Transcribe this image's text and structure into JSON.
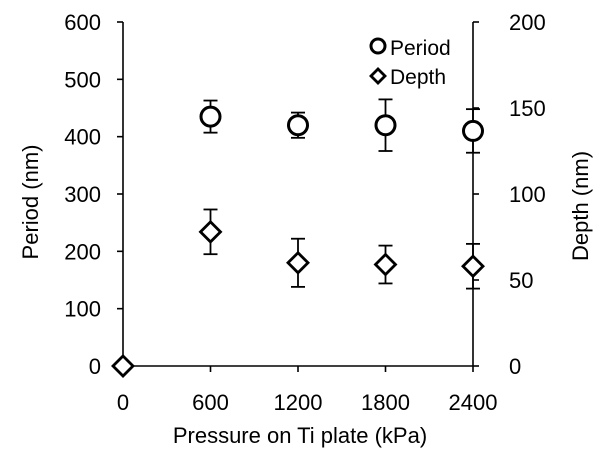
{
  "chart_data": {
    "type": "scatter",
    "title": "",
    "xlabel": "Pressure on Ti plate (kPa)",
    "ylabel": "Period (nm)",
    "y2label": "Depth (nm)",
    "xlim": [
      0,
      2400
    ],
    "ylim": [
      0,
      600
    ],
    "y2lim": [
      0,
      200
    ],
    "xticks": [
      "0",
      "600",
      "1200",
      "1800",
      "2400"
    ],
    "yticks": [
      "0",
      "100",
      "200",
      "300",
      "400",
      "500",
      "600"
    ],
    "y2ticks": [
      "0",
      "50",
      "100",
      "150",
      "200"
    ],
    "grid": false,
    "legend_position": "top-right",
    "series": [
      {
        "name": "Period",
        "axis": "left",
        "marker": "circle",
        "color": "#000000",
        "x": [
          600,
          1200,
          1800,
          2400
        ],
        "y": [
          435,
          420,
          420,
          410
        ],
        "error": [
          28,
          22,
          45,
          38
        ]
      },
      {
        "name": "Depth",
        "axis": "right",
        "marker": "diamond",
        "color": "#000000",
        "x": [
          0,
          600,
          1200,
          1800,
          2400
        ],
        "y": [
          0,
          78,
          60,
          59,
          58
        ],
        "error": [
          0,
          13,
          14,
          11,
          13
        ]
      }
    ]
  }
}
